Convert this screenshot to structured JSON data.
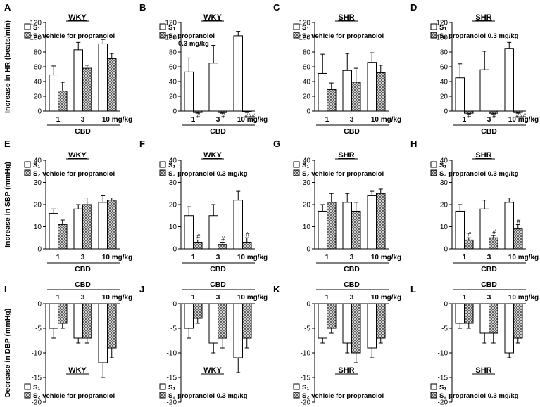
{
  "chart_data": [
    {
      "letter": "A",
      "strain": "WKY",
      "type": "bar",
      "ylabel": "Increase in HR (beats/min)",
      "ylim": [
        0,
        120
      ],
      "yticks": [
        0,
        20,
        40,
        60,
        80,
        100,
        120
      ],
      "categories": [
        "1",
        "3",
        "10 mg/kg"
      ],
      "xgroup": "CBD",
      "series": [
        {
          "name": "S1",
          "legend": "S₁",
          "pattern": "open",
          "values": [
            49,
            83,
            91
          ],
          "errors": [
            12,
            10,
            6
          ]
        },
        {
          "name": "S2 vehicle for propranolol",
          "legend": "S₂ vehicle for propranolol",
          "pattern": "hatch",
          "values": [
            27,
            58,
            71
          ],
          "errors": [
            12,
            4,
            7
          ]
        }
      ],
      "marks": [
        "",
        "",
        ""
      ]
    },
    {
      "letter": "B",
      "strain": "WKY",
      "type": "bar",
      "ylabel": "",
      "ylim": [
        0,
        120
      ],
      "yticks": [
        0,
        20,
        40,
        60,
        80,
        100,
        120
      ],
      "categories": [
        "1",
        "3",
        "10 mg/kg"
      ],
      "xgroup": "CBD",
      "series": [
        {
          "name": "S1",
          "legend": "S₁",
          "pattern": "open",
          "values": [
            53,
            65,
            102
          ],
          "errors": [
            19,
            24,
            6
          ]
        },
        {
          "name": "S2 propranolol 0.3 mg/kg",
          "legend": "S₂ propranolol",
          "legend2": "0.3 mg/kg",
          "pattern": "hatch",
          "values": [
            -2,
            -2,
            -1
          ],
          "errors": [
            1,
            1,
            1
          ]
        }
      ],
      "marks": [
        "#",
        "#",
        "###"
      ]
    },
    {
      "letter": "C",
      "strain": "SHR",
      "type": "bar",
      "ylabel": "",
      "ylim": [
        0,
        120
      ],
      "yticks": [
        0,
        20,
        40,
        60,
        80,
        100,
        120
      ],
      "categories": [
        "1",
        "3",
        "10 mg/kg"
      ],
      "xgroup": "CBD",
      "series": [
        {
          "name": "S1",
          "legend": "S₁",
          "pattern": "open",
          "values": [
            51,
            55,
            66
          ],
          "errors": [
            26,
            23,
            13
          ]
        },
        {
          "name": "S2 vehicle for propranolol",
          "legend": "S₂ vehicle for propranolol",
          "pattern": "hatch",
          "values": [
            29,
            39,
            52
          ],
          "errors": [
            9,
            19,
            10
          ]
        }
      ],
      "marks": [
        "",
        "",
        ""
      ]
    },
    {
      "letter": "D",
      "strain": "SHR",
      "type": "bar",
      "ylabel": "",
      "ylim": [
        0,
        120
      ],
      "yticks": [
        0,
        20,
        40,
        60,
        80,
        100,
        120
      ],
      "categories": [
        "1",
        "3",
        "10 mg/kg"
      ],
      "xgroup": "CBD",
      "series": [
        {
          "name": "S1",
          "legend": "S₁",
          "pattern": "open",
          "values": [
            45,
            56,
            85
          ],
          "errors": [
            19,
            25,
            8
          ]
        },
        {
          "name": "S2 propranolol 0.3 mg/kg",
          "legend": "S₂ propranolol 0.3 mg/kg",
          "pattern": "hatch",
          "values": [
            -3,
            -3,
            -2
          ],
          "errors": [
            1,
            1,
            1
          ]
        }
      ],
      "marks": [
        "#",
        "#",
        "###"
      ]
    },
    {
      "letter": "E",
      "strain": "WKY",
      "type": "bar",
      "ylabel": "Increase in SBP (mmHg)",
      "ylim": [
        0,
        40
      ],
      "yticks": [
        0,
        10,
        20,
        30,
        40
      ],
      "categories": [
        "1",
        "3",
        "10 mg/kg"
      ],
      "xgroup": "CBD",
      "series": [
        {
          "name": "S1",
          "legend": "S₁",
          "pattern": "open",
          "values": [
            16,
            18,
            21
          ],
          "errors": [
            2,
            2,
            3
          ]
        },
        {
          "name": "S2 vehicle for propranolol",
          "legend": "S₂ vehicle for propranolol",
          "pattern": "hatch",
          "values": [
            11,
            20,
            22
          ],
          "errors": [
            2,
            3,
            1
          ]
        }
      ],
      "marks": [
        "",
        "",
        ""
      ]
    },
    {
      "letter": "F",
      "strain": "WKY",
      "type": "bar",
      "ylabel": "",
      "ylim": [
        0,
        40
      ],
      "yticks": [
        0,
        10,
        20,
        30,
        40
      ],
      "categories": [
        "1",
        "3",
        "10 mg/kg"
      ],
      "xgroup": "CBD",
      "series": [
        {
          "name": "S1",
          "legend": "S₁",
          "pattern": "open",
          "values": [
            15,
            15,
            22
          ],
          "errors": [
            4,
            5,
            4
          ]
        },
        {
          "name": "S2 propranolol 0.3 mg/kg",
          "legend": "S₂ propranolol 0.3 mg/kg",
          "pattern": "hatch",
          "values": [
            3,
            2,
            3
          ],
          "errors": [
            1,
            1,
            2
          ]
        }
      ],
      "marks": [
        "#",
        "#",
        "#"
      ]
    },
    {
      "letter": "G",
      "strain": "SHR",
      "type": "bar",
      "ylabel": "",
      "ylim": [
        0,
        40
      ],
      "yticks": [
        0,
        10,
        20,
        30,
        40
      ],
      "categories": [
        "1",
        "3",
        "10 mg/kg"
      ],
      "xgroup": "CBD",
      "series": [
        {
          "name": "S1",
          "legend": "S₁",
          "pattern": "open",
          "values": [
            17,
            21,
            24
          ],
          "errors": [
            3,
            4,
            2
          ]
        },
        {
          "name": "S2 vehicle for propranolol",
          "legend": "S₂ vehicle for propranolol",
          "pattern": "hatch",
          "values": [
            21,
            17,
            25
          ],
          "errors": [
            4,
            4,
            2
          ]
        }
      ],
      "marks": [
        "",
        "",
        ""
      ]
    },
    {
      "letter": "H",
      "strain": "SHR",
      "type": "bar",
      "ylabel": "",
      "ylim": [
        0,
        40
      ],
      "yticks": [
        0,
        10,
        20,
        30,
        40
      ],
      "categories": [
        "1",
        "3",
        "10 mg/kg"
      ],
      "xgroup": "CBD",
      "series": [
        {
          "name": "S1",
          "legend": "S₁",
          "pattern": "open",
          "values": [
            17,
            18,
            21
          ],
          "errors": [
            3,
            4,
            2
          ]
        },
        {
          "name": "S2 propranolol 0.3 mg/kg",
          "legend": "S₂ propranolol 0.3 mg/kg",
          "pattern": "hatch",
          "values": [
            4,
            5,
            9
          ],
          "errors": [
            1,
            1,
            2
          ]
        }
      ],
      "marks": [
        "#",
        "#",
        "#"
      ]
    },
    {
      "letter": "I",
      "strain": "WKY",
      "type": "bar",
      "ylabel": "Decrease in DBP (mmHg)",
      "ylim": [
        -20,
        0
      ],
      "yticks": [
        0,
        -5,
        -10,
        -15,
        -20
      ],
      "categories": [
        "1",
        "3",
        "10 mg/kg"
      ],
      "xgroup": "CBD",
      "series": [
        {
          "name": "S1",
          "legend": "S₁",
          "pattern": "open",
          "values": [
            -5,
            -7,
            -12
          ],
          "errors": [
            2,
            1,
            3
          ]
        },
        {
          "name": "S2 vehicle for propranolol",
          "legend": "S₂ vehicle for propranolol",
          "pattern": "hatch",
          "values": [
            -4,
            -7,
            -9
          ],
          "errors": [
            1,
            1,
            2
          ]
        }
      ],
      "marks": [
        "",
        "",
        ""
      ]
    },
    {
      "letter": "J",
      "strain": "WKY",
      "type": "bar",
      "ylabel": "",
      "ylim": [
        -20,
        0
      ],
      "yticks": [
        0,
        -5,
        -10,
        -15,
        -20
      ],
      "categories": [
        "1",
        "3",
        "10 mg/kg"
      ],
      "xgroup": "CBD",
      "series": [
        {
          "name": "S1",
          "legend": "S₁",
          "pattern": "open",
          "values": [
            -5,
            -8,
            -11
          ],
          "errors": [
            2,
            2,
            3
          ]
        },
        {
          "name": "S2 propranolol 0.3 mg/kg",
          "legend": "S₂ propranolol 0.3 mg/kg",
          "pattern": "hatch",
          "values": [
            -3,
            -7,
            -7
          ],
          "errors": [
            1,
            2,
            2
          ]
        }
      ],
      "marks": [
        "",
        "",
        ""
      ]
    },
    {
      "letter": "K",
      "strain": "SHR",
      "type": "bar",
      "ylabel": "",
      "ylim": [
        -20,
        0
      ],
      "yticks": [
        0,
        -5,
        -10,
        -15,
        -20
      ],
      "categories": [
        "1",
        "3",
        "10 mg/kg"
      ],
      "xgroup": "CBD",
      "series": [
        {
          "name": "S1",
          "legend": "S₁",
          "pattern": "open",
          "values": [
            -7,
            -8,
            -9
          ],
          "errors": [
            1,
            2,
            2
          ]
        },
        {
          "name": "S2 vehicle for propranolol",
          "legend": "S₂ vehicle for propranolol",
          "pattern": "hatch",
          "values": [
            -5,
            -10,
            -7
          ],
          "errors": [
            1,
            2,
            1
          ]
        }
      ],
      "marks": [
        "",
        "",
        ""
      ]
    },
    {
      "letter": "L",
      "strain": "SHR",
      "type": "bar",
      "ylabel": "",
      "ylim": [
        -20,
        0
      ],
      "yticks": [
        0,
        -5,
        -10,
        -15,
        -20
      ],
      "categories": [
        "1",
        "3",
        "10 mg/kg"
      ],
      "xgroup": "CBD",
      "series": [
        {
          "name": "S1",
          "legend": "S₁",
          "pattern": "open",
          "values": [
            -4,
            -6,
            -10
          ],
          "errors": [
            1,
            2,
            1
          ]
        },
        {
          "name": "S2 propranolol 0.3 mg/kg",
          "legend": "S₂ propranolol 0.3 mg/kg",
          "pattern": "hatch",
          "values": [
            -4,
            -6,
            -7
          ],
          "errors": [
            1,
            2,
            1
          ]
        }
      ],
      "marks": [
        "",
        "",
        ""
      ]
    }
  ]
}
